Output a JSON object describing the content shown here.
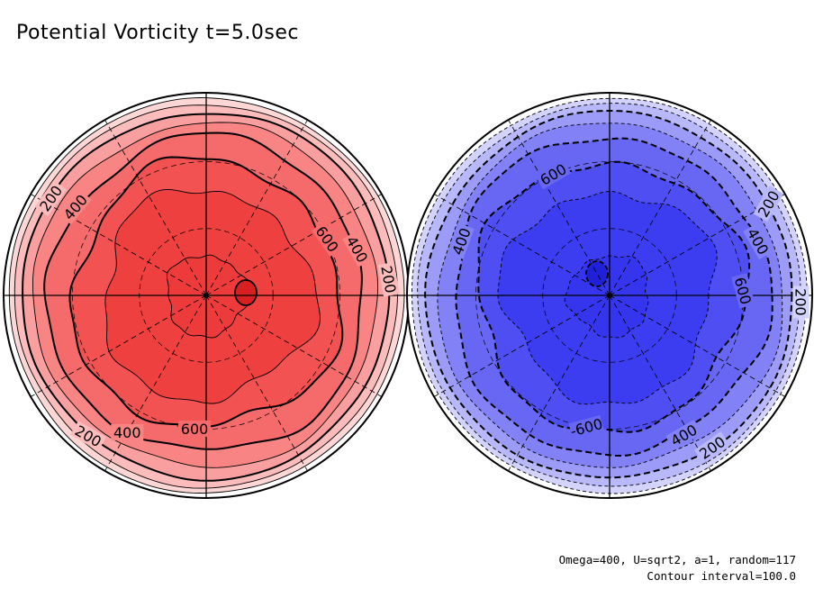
{
  "title": "Potential Vorticity t=5.0sec",
  "params": "Omega=400, U=sqrt2, a=1, random=117",
  "contour_note": "Contour interval=100.0",
  "chart_data": [
    {
      "type": "heatmap",
      "projection": "polar stereographic (hemisphere)",
      "hemisphere": "north",
      "colormap": "reds",
      "contour_levels": [
        100,
        200,
        300,
        400,
        500,
        600,
        700,
        800
      ],
      "labeled_levels": [
        200,
        400,
        600
      ],
      "center_value": 800,
      "edge_value": 0,
      "level_colors": [
        "#ffffff",
        "#fdd6d6",
        "#fcbcbc",
        "#fa9f9f",
        "#f88484",
        "#f56a6a",
        "#f25252",
        "#ef4040",
        "#ed3a3a"
      ],
      "grid": true,
      "contour_labels": [
        {
          "text": "200",
          "rotation": -55
        },
        {
          "text": "400",
          "rotation": -50
        },
        {
          "text": "600",
          "rotation": 55
        },
        {
          "text": "400",
          "rotation": 60
        },
        {
          "text": "200",
          "rotation": 80
        },
        {
          "text": "600",
          "rotation": 0
        },
        {
          "text": "400",
          "rotation": 0
        },
        {
          "text": "200",
          "rotation": 30
        }
      ]
    },
    {
      "type": "heatmap",
      "projection": "polar stereographic (hemisphere)",
      "hemisphere": "south",
      "colormap": "blues",
      "contour_levels": [
        -800,
        -700,
        -600,
        -500,
        -400,
        -300,
        -200,
        -100
      ],
      "labeled_levels": [
        -200,
        -400,
        -600
      ],
      "center_value": -800,
      "edge_value": 0,
      "level_colors": [
        "#ffffff",
        "#d3d3fd",
        "#b8b8fb",
        "#9c9cf8",
        "#8282f6",
        "#6767f4",
        "#4e4ef2",
        "#3c3cf0",
        "#3535ee"
      ],
      "grid": true,
      "contour_labels": [
        {
          "text": "600",
          "rotation": -30
        },
        {
          "text": "400",
          "rotation": -70
        },
        {
          "text": "200",
          "rotation": 90
        },
        {
          "text": "200",
          "rotation": -60
        },
        {
          "text": "400",
          "rotation": 60
        },
        {
          "text": "600",
          "rotation": 75
        },
        {
          "text": "-600",
          "rotation": -15
        },
        {
          "text": "400",
          "rotation": -30
        },
        {
          "text": "200",
          "rotation": -35
        }
      ]
    }
  ]
}
